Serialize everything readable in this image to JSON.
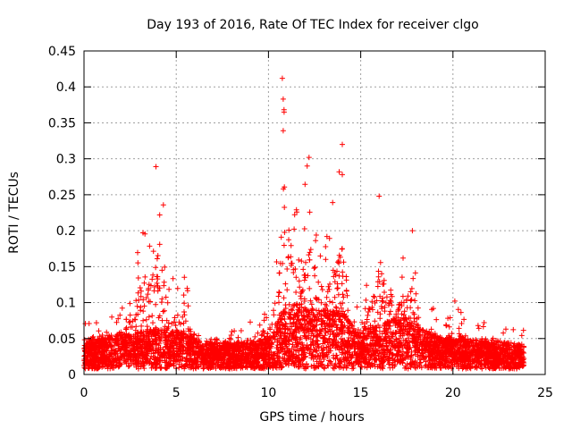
{
  "chart_data": {
    "type": "scatter",
    "title": "Day 193 of 2016, Rate Of TEC Index for receiver clgo",
    "xlabel": "GPS time / hours",
    "ylabel": "ROTI / TECUs",
    "xlim": [
      0,
      25
    ],
    "ylim": [
      0,
      0.45
    ],
    "grid": true,
    "marker": "+",
    "color": "#ff0000",
    "x_ticks": [
      0,
      5,
      10,
      15,
      20,
      25
    ],
    "x_tick_labels": [
      "0",
      "5",
      "10",
      "15",
      "20",
      "25"
    ],
    "y_ticks": [
      0,
      0.05,
      0.1,
      0.15,
      0.2,
      0.25,
      0.3,
      0.35,
      0.4,
      0.45
    ],
    "y_tick_labels": [
      "0",
      "0.05",
      "0.1",
      "0.15",
      "0.2",
      "0.25",
      "0.3",
      "0.35",
      "0.4",
      "0.45"
    ],
    "series": [
      {
        "name": "ROTI",
        "envelope_note": "dense scatter; representative distribution by hour",
        "profile": [
          {
            "x": 0.0,
            "base": 0.025,
            "peak": 0.08
          },
          {
            "x": 1.0,
            "base": 0.03,
            "peak": 0.08
          },
          {
            "x": 2.0,
            "base": 0.035,
            "peak": 0.09
          },
          {
            "x": 3.0,
            "base": 0.04,
            "peak": 0.2
          },
          {
            "x": 3.9,
            "base": 0.045,
            "peak": 0.29
          },
          {
            "x": 4.5,
            "base": 0.045,
            "peak": 0.19
          },
          {
            "x": 5.0,
            "base": 0.04,
            "peak": 0.12
          },
          {
            "x": 5.5,
            "base": 0.04,
            "peak": 0.14
          },
          {
            "x": 6.0,
            "base": 0.03,
            "peak": 0.06
          },
          {
            "x": 7.0,
            "base": 0.025,
            "peak": 0.05
          },
          {
            "x": 8.0,
            "base": 0.025,
            "peak": 0.06
          },
          {
            "x": 9.0,
            "base": 0.025,
            "peak": 0.08
          },
          {
            "x": 10.0,
            "base": 0.03,
            "peak": 0.09
          },
          {
            "x": 10.5,
            "base": 0.05,
            "peak": 0.2
          },
          {
            "x": 10.8,
            "base": 0.07,
            "peak": 0.41
          },
          {
            "x": 11.5,
            "base": 0.08,
            "peak": 0.24
          },
          {
            "x": 12.2,
            "base": 0.07,
            "peak": 0.3
          },
          {
            "x": 13.0,
            "base": 0.07,
            "peak": 0.18
          },
          {
            "x": 14.0,
            "base": 0.07,
            "peak": 0.32
          },
          {
            "x": 14.5,
            "base": 0.05,
            "peak": 0.13
          },
          {
            "x": 15.0,
            "base": 0.04,
            "peak": 0.07
          },
          {
            "x": 16.0,
            "base": 0.05,
            "peak": 0.25
          },
          {
            "x": 17.0,
            "base": 0.06,
            "peak": 0.15
          },
          {
            "x": 17.7,
            "base": 0.06,
            "peak": 0.2
          },
          {
            "x": 18.5,
            "base": 0.04,
            "peak": 0.11
          },
          {
            "x": 19.5,
            "base": 0.03,
            "peak": 0.07
          },
          {
            "x": 20.0,
            "base": 0.03,
            "peak": 0.1
          },
          {
            "x": 21.0,
            "base": 0.03,
            "peak": 0.07
          },
          {
            "x": 22.0,
            "base": 0.025,
            "peak": 0.085
          },
          {
            "x": 23.0,
            "base": 0.025,
            "peak": 0.06
          },
          {
            "x": 23.8,
            "base": 0.02,
            "peak": 0.07
          }
        ],
        "notable_points": [
          {
            "x": 3.9,
            "y": 0.289
          },
          {
            "x": 4.3,
            "y": 0.236
          },
          {
            "x": 3.2,
            "y": 0.197
          },
          {
            "x": 10.75,
            "y": 0.412
          },
          {
            "x": 10.8,
            "y": 0.383
          },
          {
            "x": 10.85,
            "y": 0.365
          },
          {
            "x": 10.8,
            "y": 0.339
          },
          {
            "x": 12.2,
            "y": 0.302
          },
          {
            "x": 12.1,
            "y": 0.29
          },
          {
            "x": 14.0,
            "y": 0.32
          },
          {
            "x": 14.0,
            "y": 0.278
          },
          {
            "x": 16.0,
            "y": 0.248
          },
          {
            "x": 17.8,
            "y": 0.2
          },
          {
            "x": 20.1,
            "y": 0.102
          }
        ]
      }
    ]
  }
}
